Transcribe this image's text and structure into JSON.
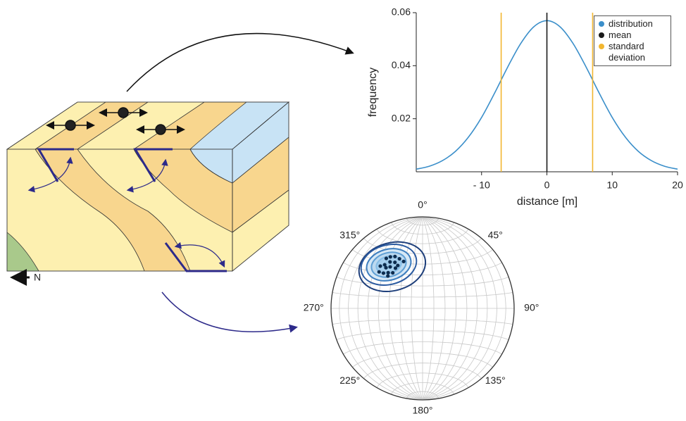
{
  "diagram": {
    "label": "N"
  },
  "chart_data": [
    {
      "type": "line",
      "x": [
        -20,
        -18,
        -16,
        -14,
        -12,
        -10,
        -8,
        -6,
        -4,
        -2,
        0,
        2,
        4,
        6,
        8,
        10,
        12,
        14,
        16,
        18,
        20
      ],
      "series": [
        {
          "name": "distribution",
          "color": "#3b8fca",
          "values": [
            0.001,
            0.0021,
            0.0042,
            0.0077,
            0.0131,
            0.0205,
            0.0297,
            0.0395,
            0.0484,
            0.0547,
            0.057,
            0.0547,
            0.0484,
            0.0395,
            0.0297,
            0.0205,
            0.0131,
            0.0077,
            0.0042,
            0.0021,
            0.001
          ]
        },
        {
          "name": "mean",
          "color": "#1a1a1a",
          "x_values": [
            0
          ]
        },
        {
          "name": "standard deviation",
          "color": "#f2b630",
          "x_values": [
            -7,
            7
          ]
        }
      ],
      "xlabel": "distance [m]",
      "ylabel": "frequency",
      "xlim": [
        -20,
        20
      ],
      "xticks": [
        {
          "value": -10,
          "label": "- 10"
        },
        0,
        10,
        20
      ],
      "ylim": [
        0,
        0.06
      ],
      "yticks": [
        0.02,
        0.04,
        0.06
      ],
      "legend": "upper right"
    },
    {
      "type": "stereonet",
      "azimuth_ticks": [
        {
          "value": 0,
          "label": "0°"
        },
        {
          "value": 45,
          "label": "45°"
        },
        {
          "value": 90,
          "label": "90°"
        },
        {
          "value": 135,
          "label": "135°"
        },
        {
          "value": 180,
          "label": "180°"
        },
        {
          "value": 225,
          "label": "225°"
        },
        {
          "value": 270,
          "label": "270°"
        },
        {
          "value": 315,
          "label": "315°"
        }
      ],
      "color": "#0d2c4e",
      "trends": [
        318,
        322,
        325,
        330,
        315,
        312,
        328,
        335,
        320,
        326,
        310,
        332,
        316,
        324,
        338,
        319,
        329,
        313
      ],
      "plunges": [
        40,
        42,
        38,
        45,
        35,
        42,
        34,
        40,
        48,
        46,
        38,
        36,
        45,
        33,
        44,
        37,
        41,
        47
      ]
    }
  ]
}
